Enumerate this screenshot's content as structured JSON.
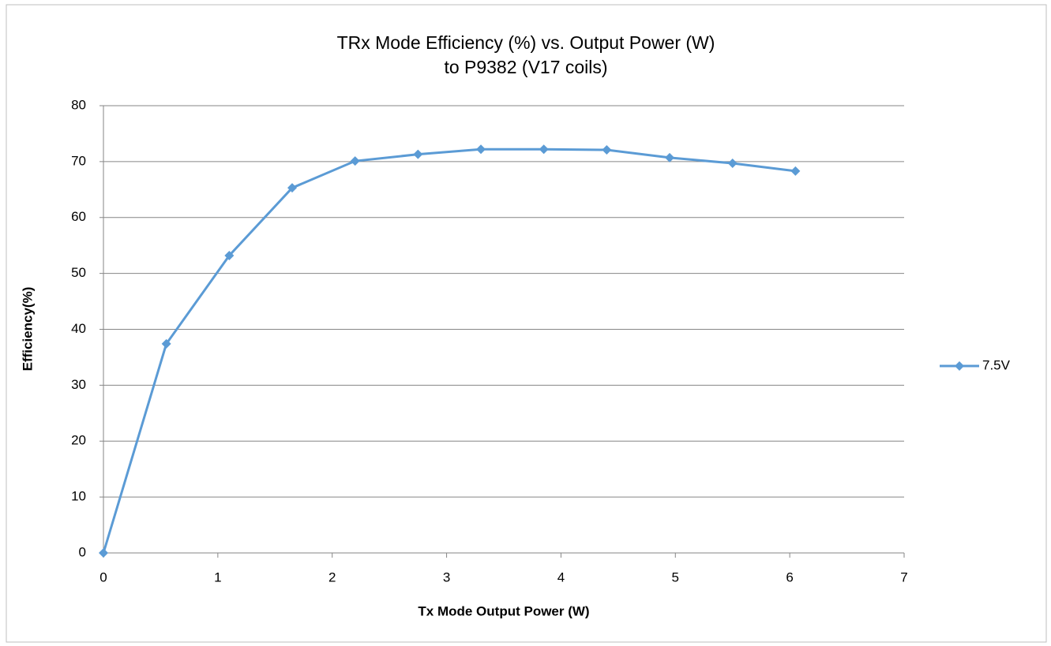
{
  "chart_data": {
    "type": "line",
    "title": [
      "TRx Mode Efficiency (%) vs. Output Power (W)",
      "to P9382 (V17 coils)"
    ],
    "xlabel": "Tx Mode Output Power (W)",
    "ylabel": "Efficiency(%)",
    "x": [
      0,
      0.55,
      1.1,
      1.65,
      2.2,
      2.75,
      3.3,
      3.85,
      4.4,
      4.95,
      5.5,
      6.05
    ],
    "series": [
      {
        "name": "7.5V",
        "color": "#5b9bd5",
        "values": [
          0,
          37.4,
          53.2,
          65.3,
          70.1,
          71.3,
          72.2,
          72.2,
          72.1,
          70.7,
          69.7,
          68.3
        ]
      }
    ],
    "xlim": [
      0,
      7
    ],
    "xticks": [
      0,
      1,
      2,
      3,
      4,
      5,
      6,
      7
    ],
    "ylim": [
      0,
      80
    ],
    "yticks": [
      0,
      10,
      20,
      30,
      40,
      50,
      60,
      70,
      80
    ],
    "grid": true,
    "legend": "right"
  }
}
